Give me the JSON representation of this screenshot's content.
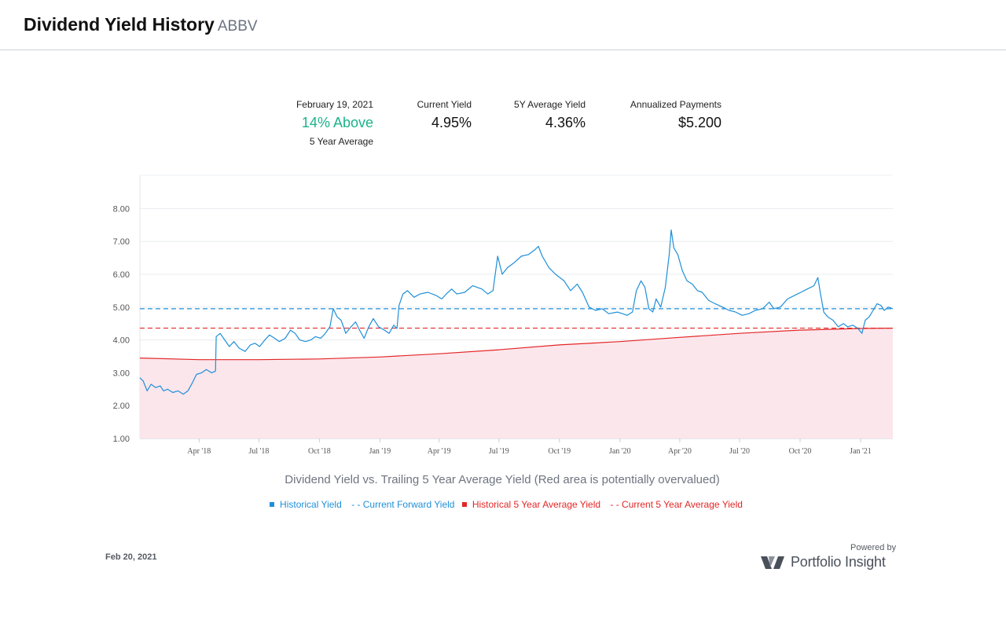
{
  "header": {
    "title": "Dividend Yield History",
    "ticker": "ABBV"
  },
  "stats": {
    "date_label": "February 19, 2021",
    "relative_value": "14%  Above",
    "relative_sub": "5 Year Average",
    "current_yield_label": "Current Yield",
    "current_yield_value": "4.95%",
    "avg_yield_label": "5Y Average Yield",
    "avg_yield_value": "4.36%",
    "annualized_label": "Annualized Payments",
    "annualized_value": "$5.200"
  },
  "chart_data": {
    "type": "line",
    "subtitle": "Dividend Yield vs. Trailing 5 Year Average Yield (Red area is potentially overvalued)",
    "ylim": [
      1.0,
      8.0
    ],
    "xlim": [
      "2018-01-01",
      "2021-02-19"
    ],
    "grid": true,
    "legend_position": "bottom",
    "y_ticks": [
      "1.00",
      "2.00",
      "3.00",
      "4.00",
      "5.00",
      "6.00",
      "7.00",
      "8.00"
    ],
    "x_ticks": [
      {
        "label": "Apr '18",
        "date": "2018-04-01"
      },
      {
        "label": "Jul '18",
        "date": "2018-07-01"
      },
      {
        "label": "Oct '18",
        "date": "2018-10-01"
      },
      {
        "label": "Jan '19",
        "date": "2019-01-01"
      },
      {
        "label": "Apr '19",
        "date": "2019-04-01"
      },
      {
        "label": "Jul '19",
        "date": "2019-07-01"
      },
      {
        "label": "Oct '19",
        "date": "2019-10-01"
      },
      {
        "label": "Jan '20",
        "date": "2020-01-01"
      },
      {
        "label": "Apr '20",
        "date": "2020-04-01"
      },
      {
        "label": "Jul '20",
        "date": "2020-07-01"
      },
      {
        "label": "Oct '20",
        "date": "2020-10-01"
      },
      {
        "label": "Jan '21",
        "date": "2021-01-01"
      }
    ],
    "series": [
      {
        "name": "Historical Yield",
        "color": "#1f8fd8",
        "points": [
          [
            "2018-01-01",
            2.85
          ],
          [
            "2018-01-06",
            2.75
          ],
          [
            "2018-01-12",
            2.45
          ],
          [
            "2018-01-18",
            2.65
          ],
          [
            "2018-01-25",
            2.55
          ],
          [
            "2018-02-01",
            2.6
          ],
          [
            "2018-02-06",
            2.45
          ],
          [
            "2018-02-12",
            2.5
          ],
          [
            "2018-02-20",
            2.4
          ],
          [
            "2018-02-28",
            2.45
          ],
          [
            "2018-03-08",
            2.35
          ],
          [
            "2018-03-15",
            2.45
          ],
          [
            "2018-03-22",
            2.7
          ],
          [
            "2018-03-28",
            2.95
          ],
          [
            "2018-04-05",
            3.0
          ],
          [
            "2018-04-12",
            3.1
          ],
          [
            "2018-04-20",
            3.0
          ],
          [
            "2018-04-26",
            3.05
          ],
          [
            "2018-04-27",
            4.1
          ],
          [
            "2018-05-03",
            4.2
          ],
          [
            "2018-05-10",
            4.0
          ],
          [
            "2018-05-17",
            3.8
          ],
          [
            "2018-05-24",
            3.95
          ],
          [
            "2018-06-01",
            3.75
          ],
          [
            "2018-06-10",
            3.65
          ],
          [
            "2018-06-18",
            3.85
          ],
          [
            "2018-06-25",
            3.9
          ],
          [
            "2018-07-02",
            3.8
          ],
          [
            "2018-07-10",
            4.0
          ],
          [
            "2018-07-17",
            4.15
          ],
          [
            "2018-07-25",
            4.05
          ],
          [
            "2018-08-01",
            3.95
          ],
          [
            "2018-08-10",
            4.05
          ],
          [
            "2018-08-18",
            4.3
          ],
          [
            "2018-08-25",
            4.2
          ],
          [
            "2018-09-01",
            4.0
          ],
          [
            "2018-09-10",
            3.95
          ],
          [
            "2018-09-18",
            4.0
          ],
          [
            "2018-09-25",
            4.1
          ],
          [
            "2018-10-03",
            4.05
          ],
          [
            "2018-10-10",
            4.2
          ],
          [
            "2018-10-17",
            4.4
          ],
          [
            "2018-10-22",
            4.95
          ],
          [
            "2018-10-28",
            4.7
          ],
          [
            "2018-11-03",
            4.6
          ],
          [
            "2018-11-10",
            4.2
          ],
          [
            "2018-11-18",
            4.4
          ],
          [
            "2018-11-25",
            4.55
          ],
          [
            "2018-12-01",
            4.3
          ],
          [
            "2018-12-08",
            4.05
          ],
          [
            "2018-12-15",
            4.4
          ],
          [
            "2018-12-22",
            4.65
          ],
          [
            "2018-12-30",
            4.4
          ],
          [
            "2019-01-08",
            4.3
          ],
          [
            "2019-01-15",
            4.2
          ],
          [
            "2019-01-22",
            4.45
          ],
          [
            "2019-01-27",
            4.35
          ],
          [
            "2019-01-30",
            5.05
          ],
          [
            "2019-02-05",
            5.4
          ],
          [
            "2019-02-12",
            5.5
          ],
          [
            "2019-02-22",
            5.3
          ],
          [
            "2019-03-03",
            5.4
          ],
          [
            "2019-03-15",
            5.45
          ],
          [
            "2019-03-28",
            5.35
          ],
          [
            "2019-04-05",
            5.25
          ],
          [
            "2019-04-12",
            5.4
          ],
          [
            "2019-04-20",
            5.55
          ],
          [
            "2019-04-28",
            5.4
          ],
          [
            "2019-05-10",
            5.45
          ],
          [
            "2019-05-22",
            5.65
          ],
          [
            "2019-06-05",
            5.55
          ],
          [
            "2019-06-14",
            5.4
          ],
          [
            "2019-06-22",
            5.5
          ],
          [
            "2019-06-29",
            6.55
          ],
          [
            "2019-07-06",
            6.0
          ],
          [
            "2019-07-14",
            6.2
          ],
          [
            "2019-07-24",
            6.35
          ],
          [
            "2019-08-04",
            6.55
          ],
          [
            "2019-08-15",
            6.6
          ],
          [
            "2019-08-25",
            6.75
          ],
          [
            "2019-08-30",
            6.85
          ],
          [
            "2019-09-05",
            6.55
          ],
          [
            "2019-09-15",
            6.2
          ],
          [
            "2019-09-25",
            6.0
          ],
          [
            "2019-10-08",
            5.8
          ],
          [
            "2019-10-18",
            5.5
          ],
          [
            "2019-10-28",
            5.7
          ],
          [
            "2019-11-05",
            5.45
          ],
          [
            "2019-11-15",
            5.0
          ],
          [
            "2019-11-25",
            4.9
          ],
          [
            "2019-12-05",
            4.95
          ],
          [
            "2019-12-15",
            4.8
          ],
          [
            "2019-12-28",
            4.85
          ],
          [
            "2020-01-05",
            4.8
          ],
          [
            "2020-01-12",
            4.75
          ],
          [
            "2020-01-20",
            4.85
          ],
          [
            "2020-01-26",
            5.5
          ],
          [
            "2020-02-02",
            5.8
          ],
          [
            "2020-02-08",
            5.6
          ],
          [
            "2020-02-14",
            4.95
          ],
          [
            "2020-02-20",
            4.85
          ],
          [
            "2020-02-25",
            5.25
          ],
          [
            "2020-03-03",
            5.0
          ],
          [
            "2020-03-10",
            5.6
          ],
          [
            "2020-03-16",
            6.6
          ],
          [
            "2020-03-19",
            7.35
          ],
          [
            "2020-03-23",
            6.8
          ],
          [
            "2020-03-29",
            6.6
          ],
          [
            "2020-04-05",
            6.1
          ],
          [
            "2020-04-12",
            5.8
          ],
          [
            "2020-04-20",
            5.7
          ],
          [
            "2020-04-28",
            5.5
          ],
          [
            "2020-05-05",
            5.45
          ],
          [
            "2020-05-15",
            5.2
          ],
          [
            "2020-05-25",
            5.1
          ],
          [
            "2020-06-05",
            5.0
          ],
          [
            "2020-06-15",
            4.9
          ],
          [
            "2020-06-25",
            4.85
          ],
          [
            "2020-07-05",
            4.75
          ],
          [
            "2020-07-15",
            4.8
          ],
          [
            "2020-07-25",
            4.9
          ],
          [
            "2020-08-05",
            4.95
          ],
          [
            "2020-08-15",
            5.15
          ],
          [
            "2020-08-22",
            4.95
          ],
          [
            "2020-09-01",
            5.0
          ],
          [
            "2020-09-12",
            5.25
          ],
          [
            "2020-09-22",
            5.35
          ],
          [
            "2020-10-02",
            5.45
          ],
          [
            "2020-10-12",
            5.55
          ],
          [
            "2020-10-22",
            5.65
          ],
          [
            "2020-10-28",
            5.9
          ],
          [
            "2020-11-01",
            5.4
          ],
          [
            "2020-11-06",
            4.85
          ],
          [
            "2020-11-12",
            4.7
          ],
          [
            "2020-11-20",
            4.6
          ],
          [
            "2020-11-28",
            4.4
          ],
          [
            "2020-12-06",
            4.5
          ],
          [
            "2020-12-12",
            4.4
          ],
          [
            "2020-12-20",
            4.45
          ],
          [
            "2020-12-28",
            4.35
          ],
          [
            "2021-01-03",
            4.2
          ],
          [
            "2021-01-08",
            4.6
          ],
          [
            "2021-01-14",
            4.7
          ],
          [
            "2021-01-20",
            4.9
          ],
          [
            "2021-01-26",
            5.1
          ],
          [
            "2021-02-01",
            5.05
          ],
          [
            "2021-02-06",
            4.9
          ],
          [
            "2021-02-12",
            5.0
          ],
          [
            "2021-02-19",
            4.95
          ]
        ]
      },
      {
        "name": "Current Forward Yield",
        "color": "#1f8fd8",
        "dashed": true,
        "value": 4.95
      },
      {
        "name": "Historical 5 Year Average Yield",
        "color": "#e32626",
        "fill": "#fbe6ec",
        "points": [
          [
            "2018-01-01",
            3.45
          ],
          [
            "2018-04-01",
            3.4
          ],
          [
            "2018-07-01",
            3.4
          ],
          [
            "2018-10-01",
            3.42
          ],
          [
            "2019-01-01",
            3.48
          ],
          [
            "2019-04-01",
            3.58
          ],
          [
            "2019-07-01",
            3.7
          ],
          [
            "2019-10-01",
            3.85
          ],
          [
            "2020-01-01",
            3.95
          ],
          [
            "2020-04-01",
            4.08
          ],
          [
            "2020-07-01",
            4.2
          ],
          [
            "2020-10-01",
            4.3
          ],
          [
            "2021-01-01",
            4.35
          ],
          [
            "2021-02-19",
            4.36
          ]
        ]
      },
      {
        "name": "Current 5 Year Average Yield",
        "color": "#e32626",
        "dashed": true,
        "value": 4.36
      }
    ]
  },
  "legend": {
    "historical_yield": "Historical Yield",
    "current_forward_yield": "- - Current Forward Yield",
    "historical_5y_avg": "Historical 5 Year Average Yield",
    "current_5y_avg": "- - Current 5 Year Average Yield"
  },
  "footer": {
    "date": "Feb 20, 2021",
    "powered_by": "Powered by",
    "brand": "Portfolio Insight"
  }
}
